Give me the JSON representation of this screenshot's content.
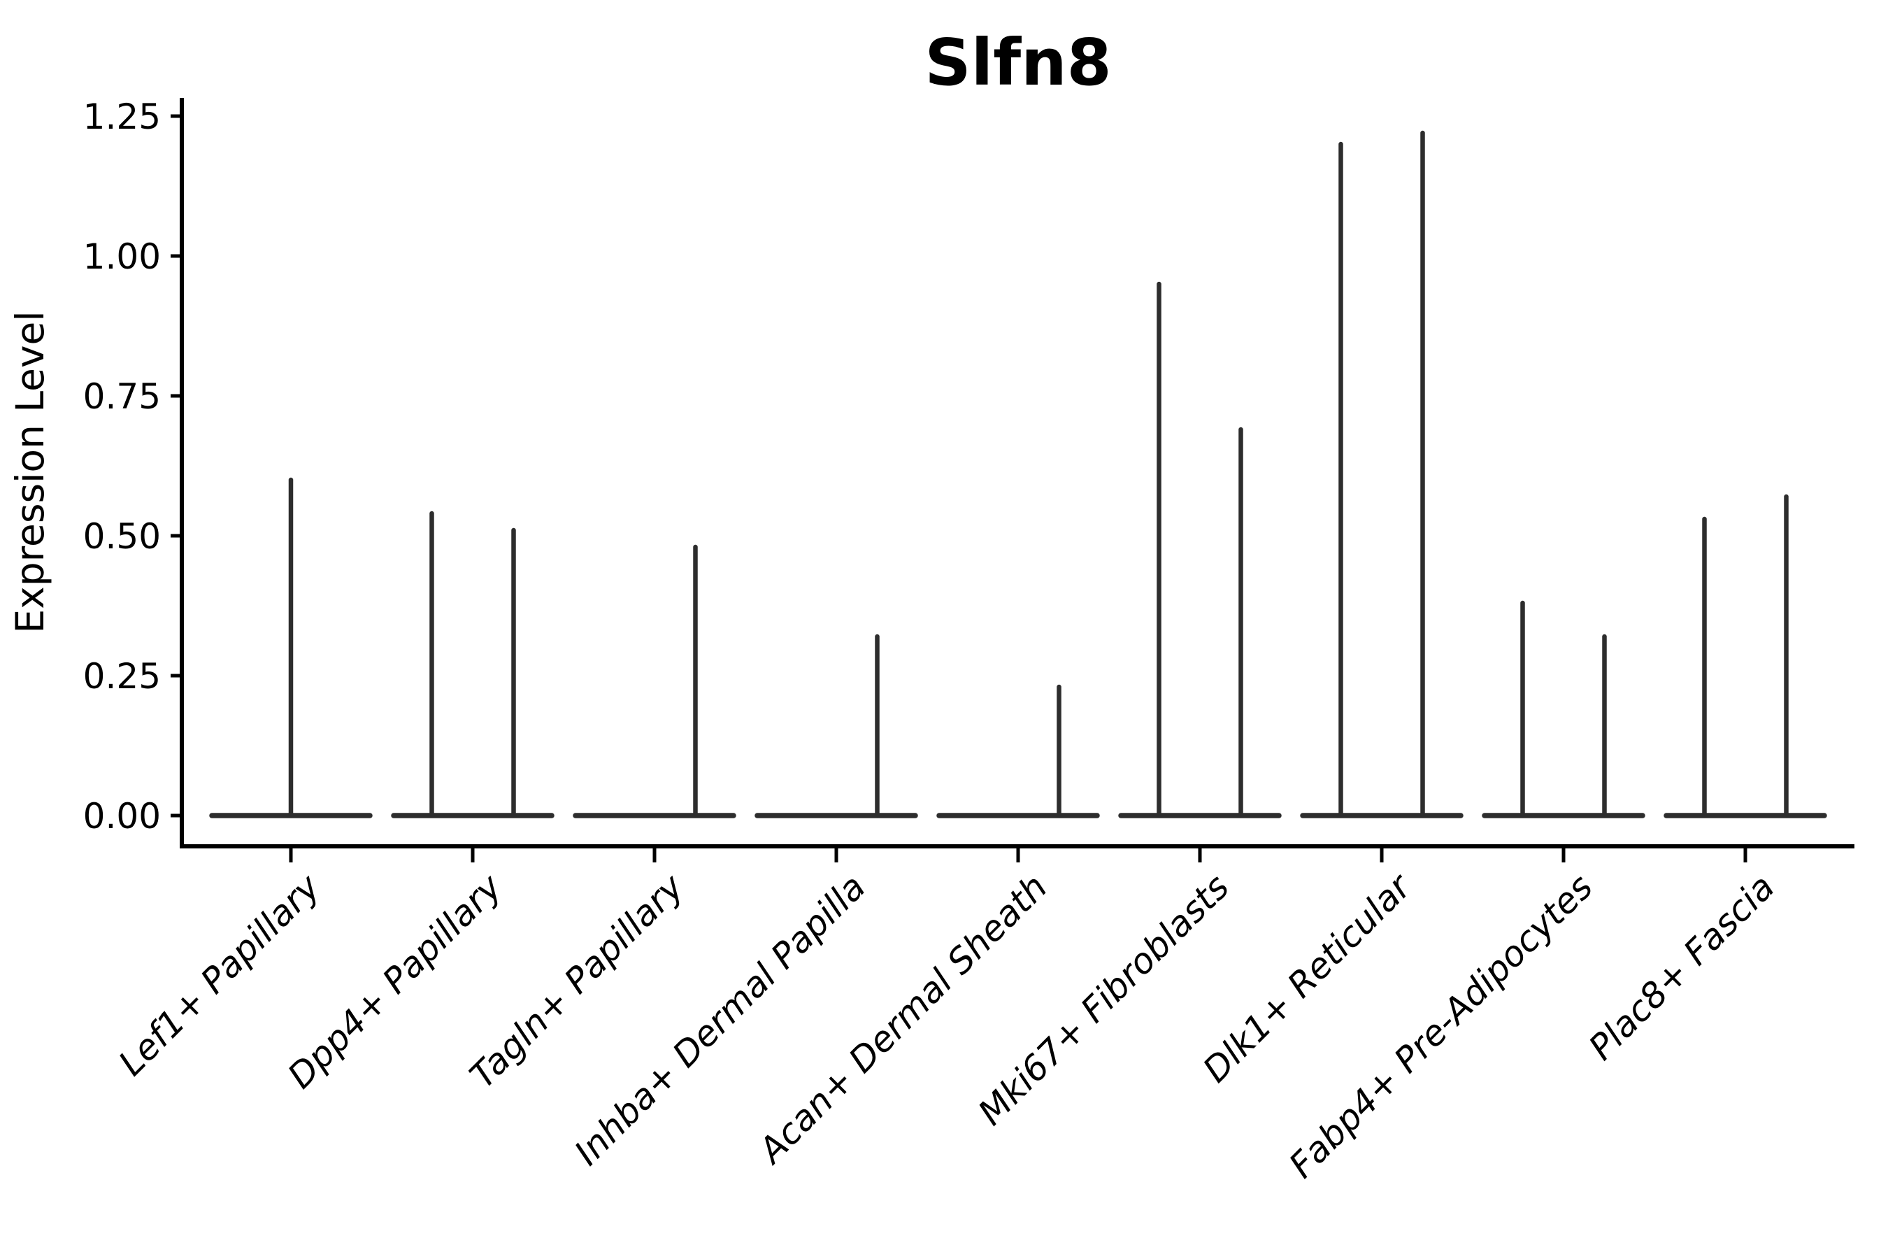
{
  "chart_data": {
    "type": "violin",
    "title": "Slfn8",
    "ylabel": "Expression Level",
    "xlabel": "",
    "ylim": [
      -0.06,
      1.28
    ],
    "yticks": [
      0.0,
      0.25,
      0.5,
      0.75,
      1.0,
      1.25
    ],
    "ytick_labels": [
      "0.00",
      "0.25",
      "0.50",
      "0.75",
      "1.00",
      "1.25"
    ],
    "grid": false,
    "legend": null,
    "x_tick_rotation": 45,
    "x_tick_style": "italic",
    "violin_color": "#2d2d2d",
    "axis_color": "#000000",
    "background_color": "#ffffff",
    "categories": [
      "Lef1+ Papillary",
      "Dpp4+ Papillary",
      "Tagln+ Papillary",
      "Inhba+ Dermal Papilla",
      "Acan+ Dermal Sheath",
      "Mki67+ Fibroblasts",
      "Dlk1+ Reticular",
      "Fabp4+ Pre-Adipocytes",
      "Plac8+ Fascia"
    ],
    "groups": [
      {
        "category": "Lef1+ Papillary",
        "violins": [
          {
            "offset": 0.0,
            "width": 0.9,
            "max": 0.6
          }
        ]
      },
      {
        "category": "Dpp4+ Papillary",
        "violins": [
          {
            "offset": -0.225,
            "width": 0.45,
            "max": 0.54
          },
          {
            "offset": 0.225,
            "width": 0.45,
            "max": 0.51
          }
        ]
      },
      {
        "category": "Tagln+ Papillary",
        "violins": [
          {
            "offset": -0.225,
            "width": 0.45,
            "max": 0.0
          },
          {
            "offset": 0.225,
            "width": 0.45,
            "max": 0.48
          }
        ]
      },
      {
        "category": "Inhba+ Dermal Papilla",
        "violins": [
          {
            "offset": -0.225,
            "width": 0.45,
            "max": 0.0
          },
          {
            "offset": 0.225,
            "width": 0.45,
            "max": 0.32
          }
        ]
      },
      {
        "category": "Acan+ Dermal Sheath",
        "violins": [
          {
            "offset": -0.225,
            "width": 0.45,
            "max": 0.0
          },
          {
            "offset": 0.225,
            "width": 0.45,
            "max": 0.23
          }
        ]
      },
      {
        "category": "Mki67+ Fibroblasts",
        "violins": [
          {
            "offset": -0.225,
            "width": 0.45,
            "max": 0.95
          },
          {
            "offset": 0.225,
            "width": 0.45,
            "max": 0.69
          }
        ]
      },
      {
        "category": "Dlk1+ Reticular",
        "violins": [
          {
            "offset": -0.225,
            "width": 0.45,
            "max": 1.2
          },
          {
            "offset": 0.225,
            "width": 0.45,
            "max": 1.22
          }
        ]
      },
      {
        "category": "Fabp4+ Pre-Adipocytes",
        "violins": [
          {
            "offset": -0.225,
            "width": 0.45,
            "max": 0.38
          },
          {
            "offset": 0.225,
            "width": 0.45,
            "max": 0.32
          }
        ]
      },
      {
        "category": "Plac8+ Fascia",
        "violins": [
          {
            "offset": -0.225,
            "width": 0.45,
            "max": 0.53
          },
          {
            "offset": 0.225,
            "width": 0.45,
            "max": 0.57
          }
        ]
      }
    ]
  }
}
